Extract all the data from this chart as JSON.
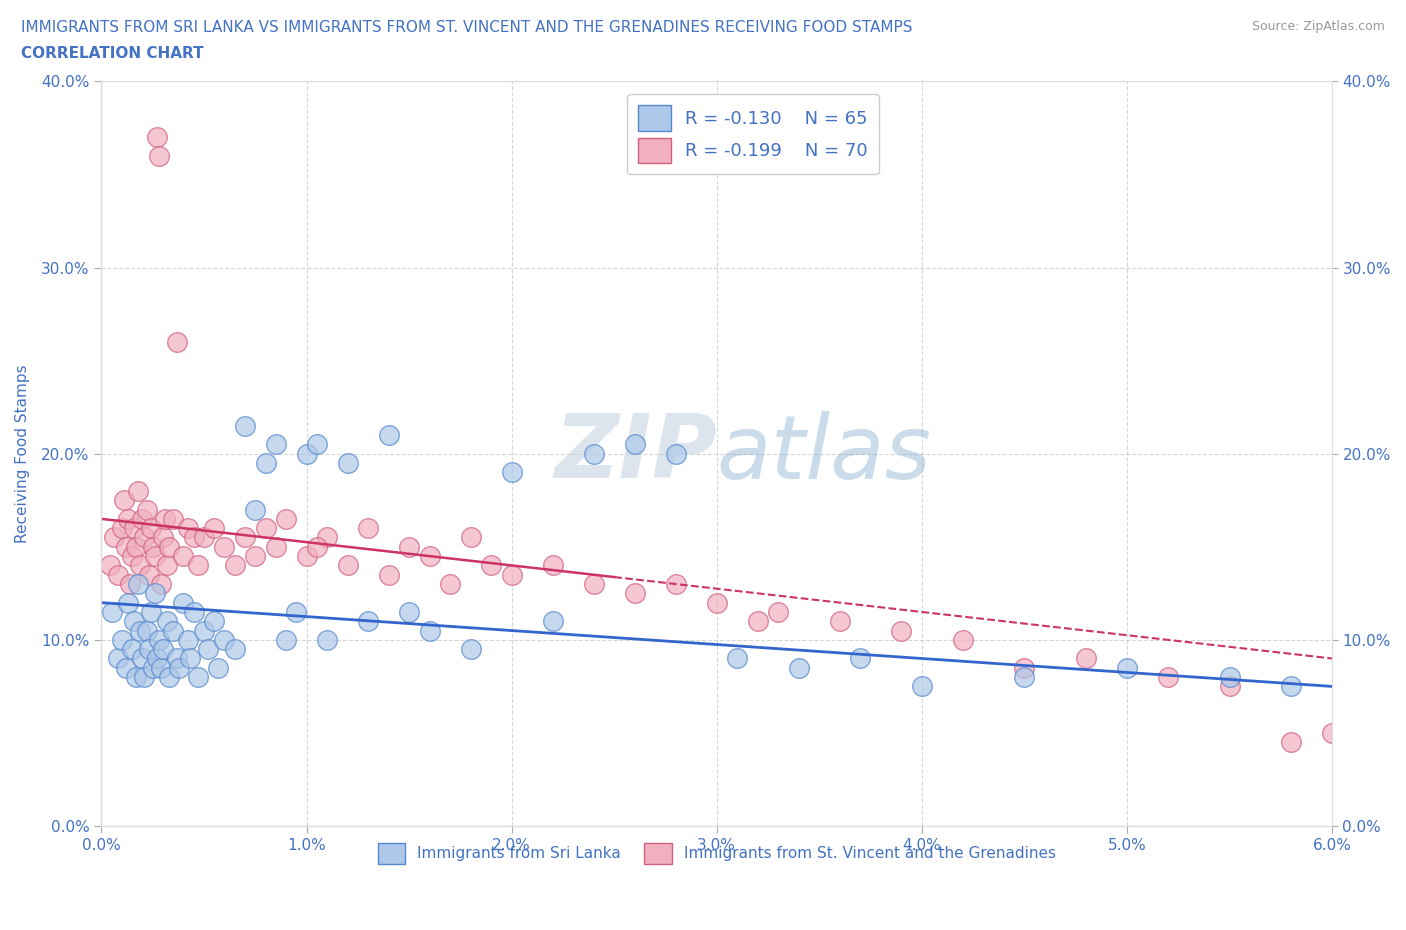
{
  "title_line1": "IMMIGRANTS FROM SRI LANKA VS IMMIGRANTS FROM ST. VINCENT AND THE GRENADINES RECEIVING FOOD STAMPS",
  "title_line2": "CORRELATION CHART",
  "source_text": "Source: ZipAtlas.com",
  "ylabel": "Receiving Food Stamps",
  "xlim": [
    0.0,
    6.0
  ],
  "ylim": [
    0.0,
    40.0
  ],
  "xticks": [
    0.0,
    1.0,
    2.0,
    3.0,
    4.0,
    5.0,
    6.0
  ],
  "yticks": [
    0.0,
    10.0,
    20.0,
    30.0,
    40.0
  ],
  "xtick_labels": [
    "0.0%",
    "1.0%",
    "2.0%",
    "3.0%",
    "4.0%",
    "5.0%",
    "6.0%"
  ],
  "ytick_labels": [
    "0.0%",
    "10.0%",
    "20.0%",
    "30.0%",
    "40.0%"
  ],
  "watermark_zip": "ZIP",
  "watermark_atlas": "atlas",
  "series1_label": "Immigrants from Sri Lanka",
  "series1_color": "#adc8e8",
  "series1_edge": "#5588cc",
  "series1_R": -0.13,
  "series1_N": 65,
  "series2_label": "Immigrants from St. Vincent and the Grenadines",
  "series2_color": "#f0b0c0",
  "series2_edge": "#d06080",
  "series2_R": -0.199,
  "series2_N": 70,
  "trendline1_color": "#3366cc",
  "trendline2_solid_color": "#cc3366",
  "trendline2_dash_color": "#cc3366",
  "legend_text_color": "#4472c4",
  "title_color": "#4472c4",
  "tick_color": "#4472c4",
  "grid_color": "#cccccc",
  "bg_color": "#ffffff",
  "series1_x": [
    0.05,
    0.08,
    0.1,
    0.12,
    0.13,
    0.15,
    0.16,
    0.17,
    0.18,
    0.19,
    0.2,
    0.21,
    0.22,
    0.23,
    0.24,
    0.25,
    0.26,
    0.27,
    0.28,
    0.29,
    0.3,
    0.32,
    0.33,
    0.35,
    0.37,
    0.38,
    0.4,
    0.42,
    0.43,
    0.45,
    0.47,
    0.5,
    0.52,
    0.55,
    0.57,
    0.6,
    0.65,
    0.7,
    0.75,
    0.8,
    0.85,
    0.9,
    0.95,
    1.0,
    1.05,
    1.1,
    1.2,
    1.3,
    1.4,
    1.5,
    1.6,
    1.8,
    2.0,
    2.2,
    2.4,
    2.6,
    2.8,
    3.1,
    3.4,
    3.7,
    4.0,
    4.5,
    5.0,
    5.5,
    5.8
  ],
  "series1_y": [
    11.5,
    9.0,
    10.0,
    8.5,
    12.0,
    9.5,
    11.0,
    8.0,
    13.0,
    10.5,
    9.0,
    8.0,
    10.5,
    9.5,
    11.5,
    8.5,
    12.5,
    9.0,
    10.0,
    8.5,
    9.5,
    11.0,
    8.0,
    10.5,
    9.0,
    8.5,
    12.0,
    10.0,
    9.0,
    11.5,
    8.0,
    10.5,
    9.5,
    11.0,
    8.5,
    10.0,
    9.5,
    21.5,
    17.0,
    19.5,
    20.5,
    10.0,
    11.5,
    20.0,
    20.5,
    10.0,
    19.5,
    11.0,
    21.0,
    11.5,
    10.5,
    9.5,
    19.0,
    11.0,
    20.0,
    20.5,
    20.0,
    9.0,
    8.5,
    9.0,
    7.5,
    8.0,
    8.5,
    8.0,
    7.5
  ],
  "series2_x": [
    0.04,
    0.06,
    0.08,
    0.1,
    0.11,
    0.12,
    0.13,
    0.14,
    0.15,
    0.16,
    0.17,
    0.18,
    0.19,
    0.2,
    0.21,
    0.22,
    0.23,
    0.24,
    0.25,
    0.26,
    0.27,
    0.28,
    0.29,
    0.3,
    0.31,
    0.32,
    0.33,
    0.35,
    0.37,
    0.4,
    0.42,
    0.45,
    0.47,
    0.5,
    0.55,
    0.6,
    0.65,
    0.7,
    0.75,
    0.8,
    0.85,
    0.9,
    1.0,
    1.1,
    1.2,
    1.3,
    1.4,
    1.5,
    1.6,
    1.7,
    1.8,
    1.9,
    2.0,
    2.2,
    2.4,
    2.6,
    2.8,
    3.0,
    3.3,
    3.6,
    3.9,
    4.2,
    4.5,
    4.8,
    5.2,
    5.5,
    5.8,
    6.0,
    3.2,
    1.05
  ],
  "series2_y": [
    14.0,
    15.5,
    13.5,
    16.0,
    17.5,
    15.0,
    16.5,
    13.0,
    14.5,
    16.0,
    15.0,
    18.0,
    14.0,
    16.5,
    15.5,
    17.0,
    13.5,
    16.0,
    15.0,
    14.5,
    37.0,
    36.0,
    13.0,
    15.5,
    16.5,
    14.0,
    15.0,
    16.5,
    26.0,
    14.5,
    16.0,
    15.5,
    14.0,
    15.5,
    16.0,
    15.0,
    14.0,
    15.5,
    14.5,
    16.0,
    15.0,
    16.5,
    14.5,
    15.5,
    14.0,
    16.0,
    13.5,
    15.0,
    14.5,
    13.0,
    15.5,
    14.0,
    13.5,
    14.0,
    13.0,
    12.5,
    13.0,
    12.0,
    11.5,
    11.0,
    10.5,
    10.0,
    8.5,
    9.0,
    8.0,
    7.5,
    4.5,
    5.0,
    11.0,
    15.0
  ]
}
